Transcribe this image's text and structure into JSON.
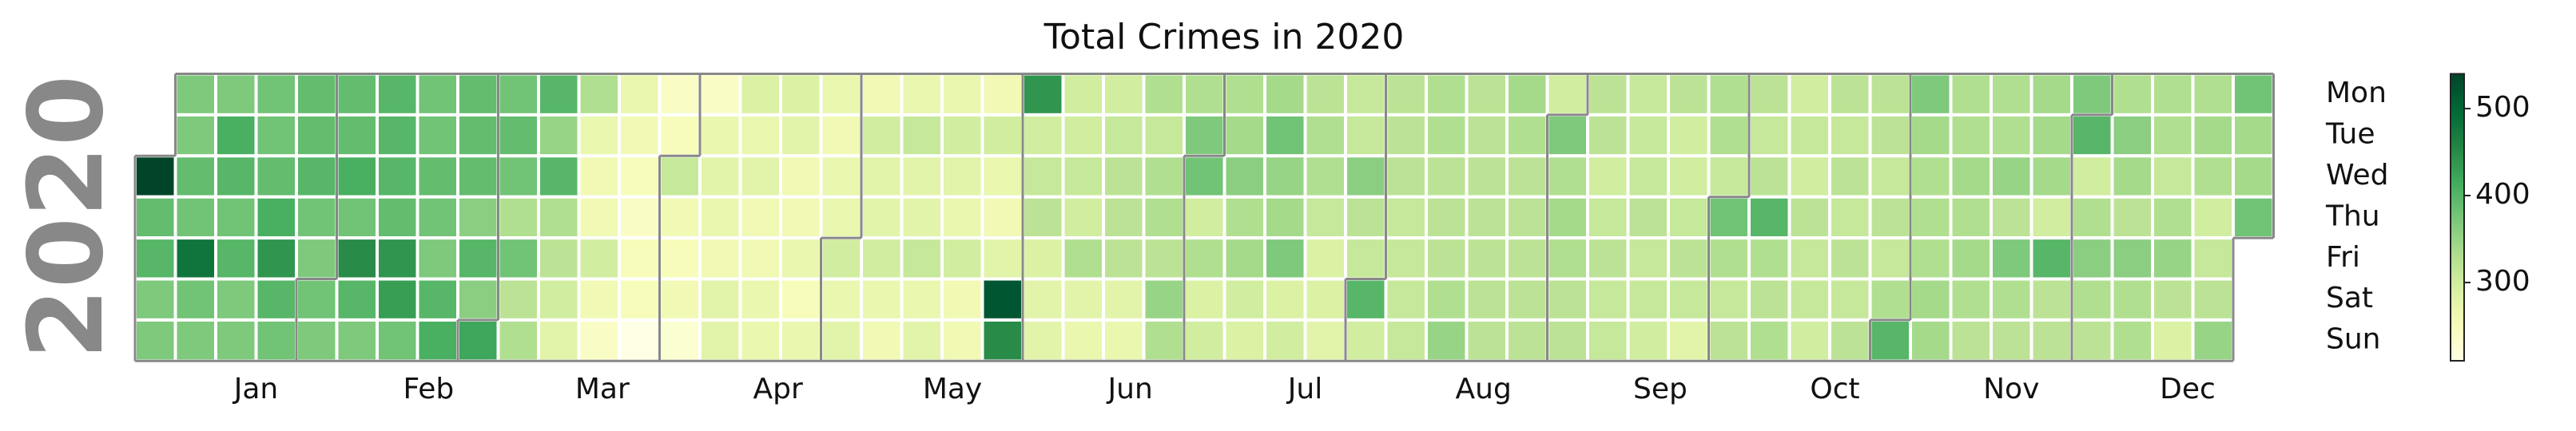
{
  "chart_data": {
    "type": "calendar_heatmap",
    "title": "Total Crimes in 2020",
    "year": 2020,
    "months": [
      "Jan",
      "Feb",
      "Mar",
      "Apr",
      "May",
      "Jun",
      "Jul",
      "Aug",
      "Sep",
      "Oct",
      "Nov",
      "Dec"
    ],
    "weekdays": [
      "Mon",
      "Tue",
      "Wed",
      "Thu",
      "Fri",
      "Sat",
      "Sun"
    ],
    "colormap": [
      "#ffffe5",
      "#f7fcb9",
      "#d9f0a3",
      "#addd8e",
      "#78c679",
      "#41ab5d",
      "#238443",
      "#006837",
      "#004529"
    ],
    "clim": [
      210,
      540
    ],
    "cticks": [
      300,
      400,
      500
    ],
    "values": [
      540,
      390,
      400,
      370,
      370,
      370,
      370,
      390,
      380,
      480,
      380,
      370,
      370,
      410,
      400,
      380,
      400,
      370,
      370,
      380,
      380,
      390,
      410,
      440,
      400,
      380,
      390,
      390,
      400,
      380,
      370,
      380,
      370,
      390,
      390,
      410,
      380,
      450,
      400,
      370,
      400,
      400,
      400,
      390,
      440,
      430,
      380,
      380,
      380,
      390,
      380,
      370,
      400,
      410,
      390,
      390,
      390,
      360,
      400,
      360,
      420,
      380,
      390,
      380,
      330,
      380,
      320,
      330,
      400,
      350,
      400,
      330,
      320,
      300,
      280,
      330,
      270,
      260,
      260,
      300,
      260,
      240,
      270,
      260,
      250,
      240,
      250,
      250,
      210,
      240,
      250,
      310,
      260,
      250,
      260,
      230,
      240,
      270,
      280,
      270,
      260,
      280,
      280,
      290,
      270,
      280,
      260,
      260,
      270,
      270,
      290,
      280,
      260,
      260,
      270,
      250,
      270,
      270,
      260,
      270,
      270,
      300,
      270,
      280,
      260,
      300,
      280,
      280,
      300,
      270,
      260,
      270,
      310,
      280,
      280,
      310,
      270,
      280,
      270,
      300,
      280,
      270,
      300,
      260,
      260,
      260,
      300,
      270,
      260,
      280,
      520,
      450,
      440,
      300,
      310,
      320,
      290,
      280,
      280,
      300,
      300,
      310,
      300,
      330,
      280,
      270,
      300,
      310,
      320,
      320,
      320,
      280,
      270,
      330,
      310,
      330,
      330,
      320,
      350,
      330,
      330,
      370,
      380,
      300,
      330,
      290,
      300,
      330,
      340,
      360,
      330,
      340,
      300,
      290,
      340,
      380,
      350,
      340,
      370,
      290,
      300,
      320,
      330,
      330,
      310,
      290,
      290,
      280,
      310,
      310,
      360,
      320,
      310,
      400,
      300,
      320,
      320,
      320,
      310,
      310,
      310,
      310,
      330,
      330,
      320,
      320,
      320,
      330,
      350,
      320,
      320,
      320,
      320,
      320,
      320,
      320,
      340,
      330,
      320,
      320,
      320,
      320,
      320,
      300,
      370,
      330,
      340,
      330,
      320,
      320,
      320,
      320,
      300,
      310,
      320,
      310,
      310,
      310,
      310,
      310,
      320,
      310,
      310,
      300,
      320,
      300,
      300,
      310,
      320,
      310,
      280,
      330,
      330,
      310,
      380,
      330,
      310,
      320,
      320,
      310,
      320,
      400,
      330,
      320,
      330,
      300,
      310,
      300,
      320,
      310,
      310,
      300,
      320,
      310,
      320,
      310,
      320,
      310,
      320,
      320,
      320,
      310,
      320,
      310,
      330,
      400,
      370,
      340,
      330,
      330,
      330,
      340,
      340,
      330,
      330,
      340,
      330,
      340,
      330,
      320,
      330,
      330,
      350,
      320,
      370,
      330,
      320,
      340,
      340,
      340,
      300,
      400,
      320,
      320,
      370,
      400,
      300,
      330,
      360,
      330,
      320,
      330,
      360,
      340,
      320,
      360,
      330,
      330,
      330,
      330,
      310,
      330,
      350,
      320,
      290,
      330,
      340,
      330,
      300,
      310,
      320,
      350,
      380,
      340,
      340,
      380
    ]
  }
}
